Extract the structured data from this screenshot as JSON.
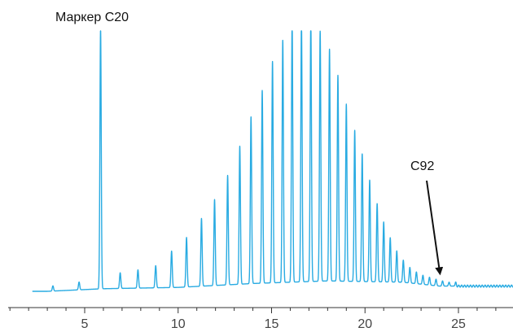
{
  "chart_data": {
    "type": "line",
    "title": "",
    "xlabel": "",
    "ylabel": "",
    "xlim": [
      0,
      28
    ],
    "ylim": [
      0,
      1.0
    ],
    "grid": false,
    "xticks": [
      5,
      10,
      15,
      20,
      25
    ],
    "xtick_labels": [
      "5",
      "10",
      "15",
      "20",
      "25"
    ],
    "colors": {
      "series": "#29abe2",
      "axis": "#333333",
      "arrow": "#111111"
    },
    "series": [
      {
        "baseline": [
          [
            2.2,
            0.0
          ],
          [
            3.0,
            0.0
          ],
          [
            6.0,
            0.01
          ],
          [
            10.0,
            0.015
          ],
          [
            14.0,
            0.03
          ],
          [
            18.0,
            0.04
          ],
          [
            22.0,
            0.035
          ],
          [
            24.0,
            0.02
          ],
          [
            28.0,
            0.02
          ]
        ],
        "peaks": [
          {
            "x": 3.3,
            "y": 0.02
          },
          {
            "x": 4.7,
            "y": 0.03
          },
          {
            "x": 5.85,
            "y": 1.0
          },
          {
            "x": 6.9,
            "y": 0.06
          },
          {
            "x": 7.85,
            "y": 0.07
          },
          {
            "x": 8.8,
            "y": 0.085
          },
          {
            "x": 9.65,
            "y": 0.14
          },
          {
            "x": 10.45,
            "y": 0.19
          },
          {
            "x": 11.25,
            "y": 0.26
          },
          {
            "x": 11.95,
            "y": 0.33
          },
          {
            "x": 12.65,
            "y": 0.42
          },
          {
            "x": 13.3,
            "y": 0.53
          },
          {
            "x": 13.9,
            "y": 0.64
          },
          {
            "x": 14.5,
            "y": 0.74
          },
          {
            "x": 15.05,
            "y": 0.85
          },
          {
            "x": 15.6,
            "y": 0.93
          },
          {
            "x": 16.1,
            "y": 1.0
          },
          {
            "x": 16.6,
            "y": 1.0
          },
          {
            "x": 17.1,
            "y": 1.0
          },
          {
            "x": 17.6,
            "y": 0.96
          },
          {
            "x": 18.1,
            "y": 0.89
          },
          {
            "x": 18.55,
            "y": 0.79
          },
          {
            "x": 19.0,
            "y": 0.68
          },
          {
            "x": 19.45,
            "y": 0.58
          },
          {
            "x": 19.85,
            "y": 0.49
          },
          {
            "x": 20.25,
            "y": 0.39
          },
          {
            "x": 20.65,
            "y": 0.3
          },
          {
            "x": 21.0,
            "y": 0.23
          },
          {
            "x": 21.35,
            "y": 0.17
          },
          {
            "x": 21.7,
            "y": 0.12
          },
          {
            "x": 22.05,
            "y": 0.085
          },
          {
            "x": 22.4,
            "y": 0.06
          },
          {
            "x": 22.75,
            "y": 0.045
          },
          {
            "x": 23.1,
            "y": 0.035
          },
          {
            "x": 23.45,
            "y": 0.03
          },
          {
            "x": 23.8,
            "y": 0.025
          },
          {
            "x": 24.15,
            "y": 0.02
          },
          {
            "x": 24.5,
            "y": 0.015
          },
          {
            "x": 24.85,
            "y": 0.012
          }
        ]
      }
    ],
    "annotations": [
      {
        "text": "Маркер C20",
        "x": 5.85,
        "y": 1.0
      },
      {
        "text": "C92",
        "x": 24.0,
        "y": 0.03,
        "arrow": true
      }
    ]
  }
}
